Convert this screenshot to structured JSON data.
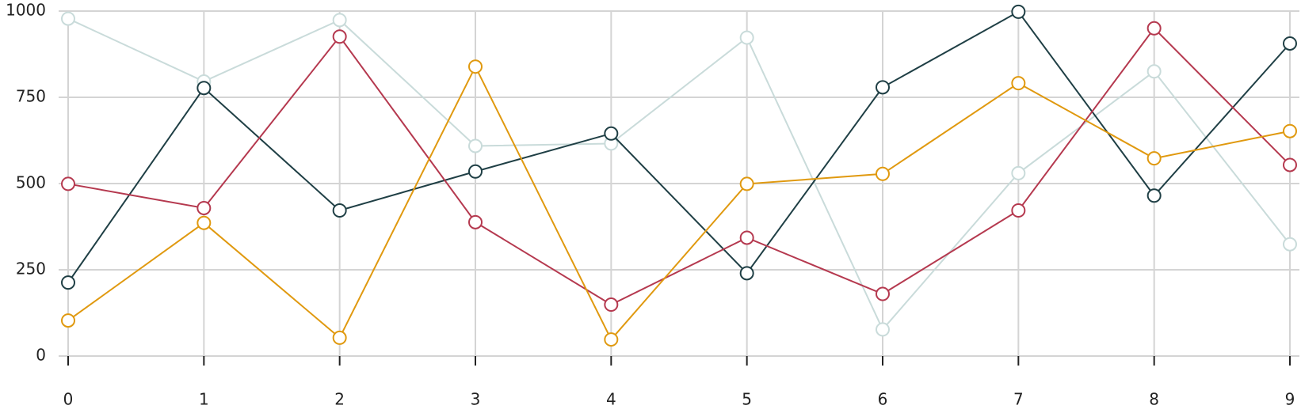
{
  "chart_data": {
    "type": "line",
    "x": [
      0,
      1,
      2,
      3,
      4,
      5,
      6,
      7,
      8,
      9
    ],
    "xlim": [
      0,
      9
    ],
    "xticks": [
      0,
      1,
      2,
      3,
      4,
      5,
      6,
      7,
      8,
      9
    ],
    "ylim": [
      0,
      1000
    ],
    "yticks": [
      0,
      250,
      500,
      750,
      1000
    ],
    "grid": true,
    "series": [
      {
        "color": "#c9dbda",
        "values": [
          978,
          796,
          974,
          609,
          616,
          923,
          77,
          530,
          825,
          324
        ]
      },
      {
        "color": "#1f3f45",
        "values": [
          213,
          777,
          422,
          535,
          645,
          240,
          779,
          998,
          465,
          906
        ]
      },
      {
        "color": "#b5394f",
        "values": [
          499,
          429,
          926,
          388,
          149,
          343,
          180,
          422,
          950,
          554
        ]
      },
      {
        "color": "#e0990f",
        "values": [
          103,
          386,
          53,
          839,
          48,
          499,
          528,
          791,
          573,
          652
        ]
      }
    ]
  }
}
